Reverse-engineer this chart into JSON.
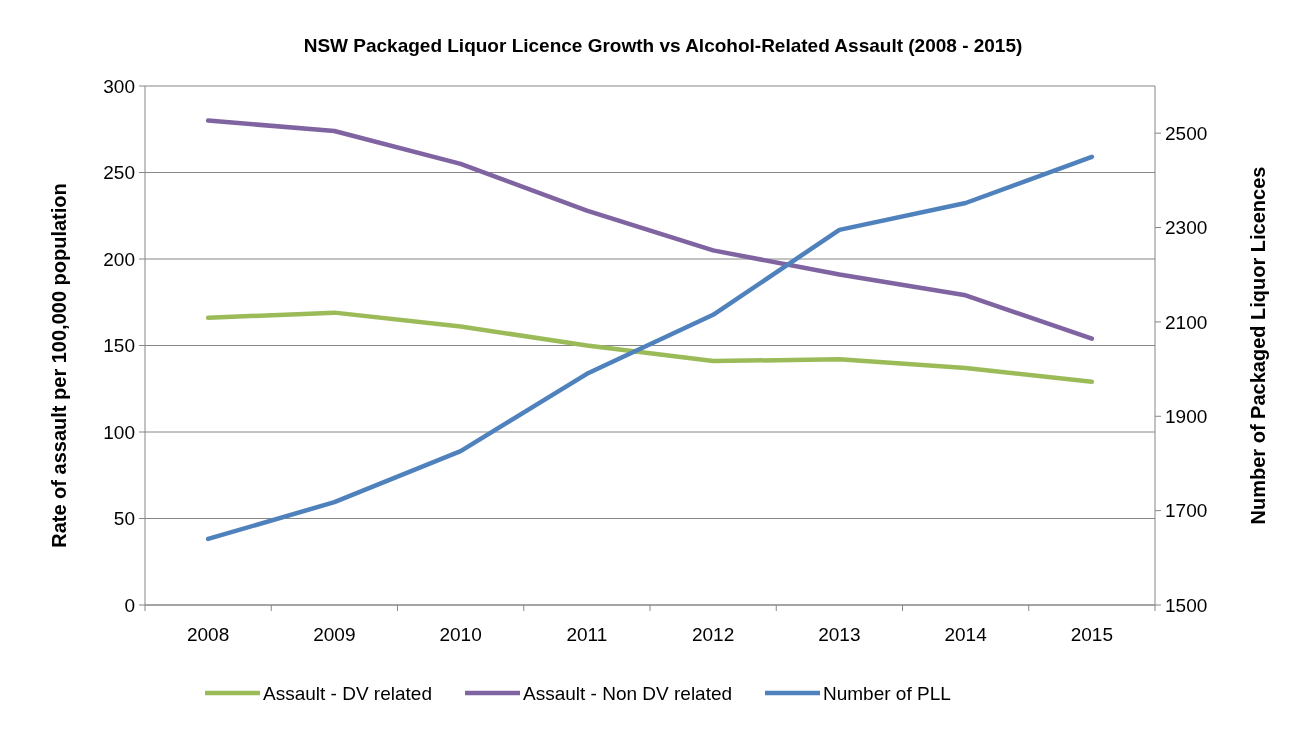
{
  "chart_data": {
    "type": "line",
    "title": "NSW Packaged Liquor Licence Growth vs Alcohol-Related Assault (2008 - 2015)",
    "ylabel": "Rate of assault per 100,000 population",
    "y2label": "Number of Packaged Liquor Licences",
    "categories": [
      "2008",
      "2009",
      "2010",
      "2011",
      "2012",
      "2013",
      "2014",
      "2015"
    ],
    "series": [
      {
        "name": "Assault - DV related",
        "color": "#9bbb59",
        "values": [
          166,
          169,
          161,
          150,
          141,
          142,
          137,
          129
        ]
      },
      {
        "name": "Assault - Non DV related",
        "color": "#8064a2",
        "values": [
          280,
          274,
          255,
          228,
          205,
          191,
          179,
          154
        ]
      },
      {
        "name": "Number of PLL",
        "color": "#4f81bd",
        "axis": "y2",
        "values": [
          1640,
          1718,
          1826,
          1990,
          2115,
          2295,
          2352,
          2450
        ]
      }
    ],
    "ylim": [
      0,
      300
    ],
    "yticks": [
      0,
      50,
      100,
      150,
      200,
      250,
      300
    ],
    "y2lim": [
      1500,
      2600
    ],
    "y2ticks": [
      1500,
      1700,
      1900,
      2100,
      2300,
      2500
    ],
    "grid": "y",
    "legend": "bottom",
    "marker": "none",
    "line_style": "solid"
  }
}
